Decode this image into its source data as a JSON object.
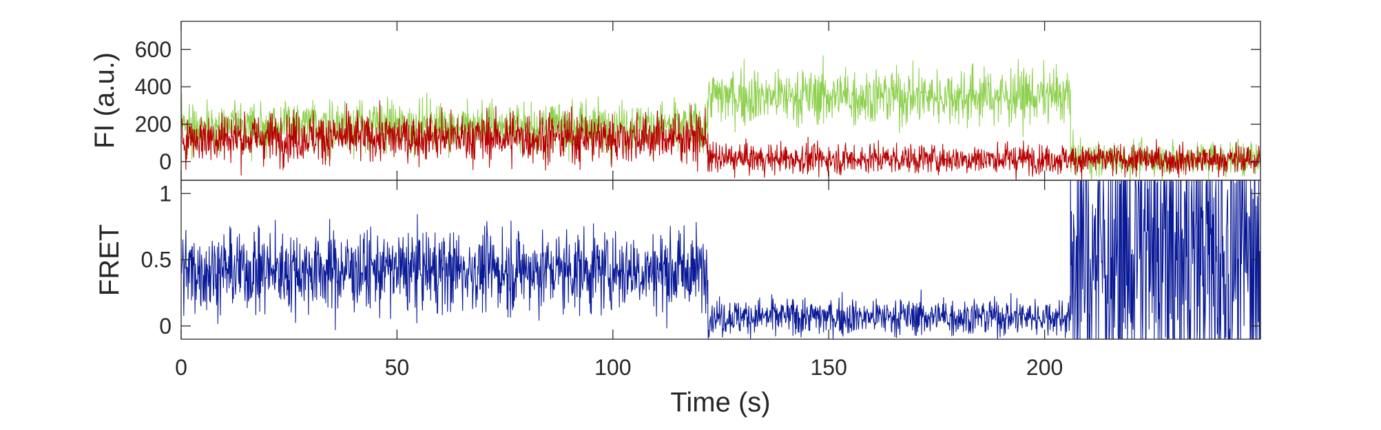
{
  "chart_data": [
    {
      "type": "line",
      "title": "",
      "ylabel": "FI (a.u.)",
      "xlabel": "",
      "xlim": [
        0,
        250
      ],
      "ylim": [
        -100,
        750
      ],
      "yticks": [
        0,
        200,
        400,
        600
      ],
      "ytick_labels": [
        "0",
        "200",
        "400",
        "600"
      ],
      "grid": false,
      "legend": "none",
      "series": [
        {
          "color": "#8fd14f",
          "segments": [
            {
              "x_start": 0,
              "x_end": 122,
              "mean": 190,
              "noise_sd": 65
            },
            {
              "x_start": 122,
              "x_end": 206,
              "mean": 350,
              "noise_sd": 75
            },
            {
              "x_start": 206,
              "x_end": 250,
              "mean": 15,
              "noise_sd": 45
            }
          ]
        },
        {
          "color": "#b80000",
          "segments": [
            {
              "x_start": 0,
              "x_end": 122,
              "mean": 130,
              "noise_sd": 65
            },
            {
              "x_start": 122,
              "x_end": 206,
              "mean": 15,
              "noise_sd": 40
            },
            {
              "x_start": 206,
              "x_end": 250,
              "mean": 10,
              "noise_sd": 40
            }
          ]
        }
      ]
    },
    {
      "type": "line",
      "title": "",
      "ylabel": "FRET",
      "xlabel": "Time (s)",
      "xlim": [
        0,
        250
      ],
      "ylim": [
        -0.1,
        1.1
      ],
      "yticks": [
        0,
        0.5,
        1
      ],
      "ytick_labels": [
        "0",
        "0.5",
        "1"
      ],
      "xticks": [
        0,
        50,
        100,
        150,
        200
      ],
      "xtick_labels": [
        "0",
        "50",
        "100",
        "150",
        "200"
      ],
      "grid": false,
      "legend": "none",
      "series": [
        {
          "color": "#0a1a96",
          "segments": [
            {
              "x_start": 0,
              "x_end": 122,
              "mean": 0.42,
              "noise_sd": 0.15
            },
            {
              "x_start": 122,
              "x_end": 206,
              "mean": 0.07,
              "noise_sd": 0.07
            },
            {
              "x_start": 206,
              "x_end": 250,
              "mean": 0.55,
              "noise_sd": 0.7
            }
          ]
        }
      ]
    }
  ],
  "colors": {
    "axes": "#262626",
    "background": "#ffffff"
  }
}
